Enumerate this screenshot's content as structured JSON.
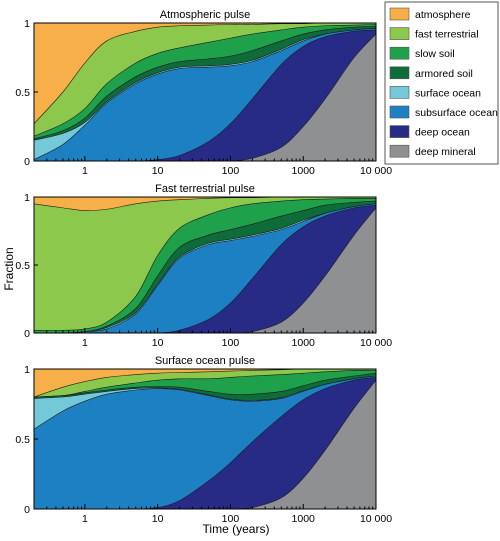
{
  "colors": {
    "atmosphere": "#f7b049",
    "fast_terrestrial": "#8cc84b",
    "slow_soil": "#1fa04a",
    "armored_soil": "#0e6b3a",
    "surface_ocean": "#74c9d8",
    "subsurface_ocean": "#1d80c3",
    "deep_ocean": "#272b86",
    "deep_mineral": "#8f9092"
  },
  "shared_axes": {
    "ylabel": "Fraction",
    "xlabel": "Time (years)",
    "xscale": "log",
    "xlim": [
      0.2,
      10000
    ],
    "ylim": [
      0,
      1
    ],
    "x_ticks": [
      1,
      10,
      100,
      1000,
      10000
    ],
    "x_tick_labels": [
      "1",
      "10",
      "100",
      "1000",
      "10 000"
    ],
    "y_ticks": [
      0,
      0.5,
      1
    ],
    "y_tick_labels": [
      "0",
      "0.5",
      "1"
    ]
  },
  "legend": {
    "placement": "top-right, outside",
    "entries": [
      "atmosphere",
      "fast terrestrial",
      "slow soil",
      "armored soil",
      "surface ocean",
      "subsurface ocean",
      "deep ocean",
      "deep mineral"
    ]
  },
  "chart_data": [
    {
      "type": "area",
      "title": "Atmospheric pulse",
      "stacking": "bottom-up cumulative boundaries",
      "x": [
        0.2,
        0.5,
        1,
        2,
        5,
        10,
        20,
        50,
        100,
        200,
        500,
        1000,
        2000,
        5000,
        10000
      ],
      "series": [
        {
          "name": "deep mineral",
          "values": [
            0,
            0,
            0,
            0,
            0,
            0,
            0,
            0,
            0,
            0.02,
            0.1,
            0.25,
            0.45,
            0.75,
            0.92
          ]
        },
        {
          "name": "deep ocean",
          "values": [
            0,
            0,
            0,
            0,
            0,
            0.01,
            0.04,
            0.14,
            0.27,
            0.45,
            0.7,
            0.83,
            0.9,
            0.94,
            0.95
          ]
        },
        {
          "name": "subsurface ocean",
          "values": [
            0.01,
            0.12,
            0.26,
            0.42,
            0.56,
            0.63,
            0.67,
            0.68,
            0.69,
            0.72,
            0.8,
            0.87,
            0.92,
            0.95,
            0.96
          ]
        },
        {
          "name": "surface ocean",
          "values": [
            0.15,
            0.2,
            0.28,
            0.43,
            0.57,
            0.64,
            0.68,
            0.69,
            0.7,
            0.73,
            0.81,
            0.88,
            0.92,
            0.95,
            0.96
          ]
        },
        {
          "name": "armored soil",
          "values": [
            0.16,
            0.22,
            0.31,
            0.47,
            0.61,
            0.68,
            0.72,
            0.74,
            0.76,
            0.8,
            0.87,
            0.92,
            0.95,
            0.97,
            0.975
          ]
        },
        {
          "name": "slow soil",
          "values": [
            0.18,
            0.27,
            0.38,
            0.56,
            0.71,
            0.78,
            0.82,
            0.86,
            0.89,
            0.92,
            0.95,
            0.97,
            0.98,
            0.985,
            0.99
          ]
        },
        {
          "name": "fast terrestrial",
          "values": [
            0.27,
            0.5,
            0.71,
            0.87,
            0.94,
            0.97,
            0.98,
            0.985,
            0.99,
            0.99,
            0.995,
            0.995,
            1,
            1,
            1
          ]
        },
        {
          "name": "atmosphere",
          "values": [
            1,
            1,
            1,
            1,
            1,
            1,
            1,
            1,
            1,
            1,
            1,
            1,
            1,
            1,
            1
          ]
        }
      ]
    },
    {
      "type": "area",
      "title": "Fast terrestrial pulse",
      "stacking": "bottom-up cumulative boundaries",
      "x": [
        0.2,
        0.5,
        1,
        2,
        5,
        10,
        20,
        50,
        100,
        200,
        500,
        1000,
        2000,
        5000,
        10000
      ],
      "series": [
        {
          "name": "deep mineral",
          "values": [
            0,
            0,
            0,
            0,
            0,
            0,
            0,
            0,
            0,
            0.01,
            0.08,
            0.22,
            0.42,
            0.72,
            0.92
          ]
        },
        {
          "name": "deep ocean",
          "values": [
            0,
            0,
            0,
            0,
            0,
            0,
            0.02,
            0.1,
            0.22,
            0.4,
            0.65,
            0.78,
            0.86,
            0.92,
            0.94
          ]
        },
        {
          "name": "subsurface ocean",
          "values": [
            0,
            0,
            0.01,
            0.03,
            0.14,
            0.35,
            0.55,
            0.65,
            0.68,
            0.71,
            0.76,
            0.82,
            0.88,
            0.93,
            0.95
          ]
        },
        {
          "name": "surface ocean",
          "values": [
            0,
            0,
            0.01,
            0.04,
            0.15,
            0.36,
            0.56,
            0.66,
            0.69,
            0.72,
            0.77,
            0.83,
            0.88,
            0.93,
            0.95
          ]
        },
        {
          "name": "armored soil",
          "values": [
            0,
            0,
            0.01,
            0.05,
            0.18,
            0.42,
            0.63,
            0.72,
            0.76,
            0.8,
            0.86,
            0.9,
            0.94,
            0.96,
            0.97
          ]
        },
        {
          "name": "slow soil",
          "values": [
            0.02,
            0.02,
            0.03,
            0.08,
            0.27,
            0.57,
            0.77,
            0.87,
            0.92,
            0.95,
            0.97,
            0.98,
            0.985,
            0.99,
            0.99
          ]
        },
        {
          "name": "fast terrestrial",
          "values": [
            0.95,
            0.92,
            0.9,
            0.91,
            0.95,
            0.97,
            0.98,
            0.99,
            0.995,
            0.995,
            1,
            1,
            1,
            1,
            1
          ]
        },
        {
          "name": "atmosphere",
          "values": [
            1,
            1,
            1,
            1,
            1,
            1,
            1,
            1,
            1,
            1,
            1,
            1,
            1,
            1,
            1
          ]
        }
      ]
    },
    {
      "type": "area",
      "title": "Surface ocean pulse",
      "stacking": "bottom-up cumulative boundaries",
      "x": [
        0.2,
        0.5,
        1,
        2,
        5,
        10,
        20,
        50,
        100,
        200,
        500,
        1000,
        2000,
        5000,
        10000
      ],
      "series": [
        {
          "name": "deep mineral",
          "values": [
            0,
            0,
            0,
            0,
            0,
            0,
            0,
            0,
            0,
            0.01,
            0.08,
            0.22,
            0.42,
            0.72,
            0.92
          ]
        },
        {
          "name": "deep ocean",
          "values": [
            0,
            0,
            0,
            0,
            0,
            0.01,
            0.06,
            0.2,
            0.33,
            0.48,
            0.66,
            0.78,
            0.86,
            0.92,
            0.94
          ]
        },
        {
          "name": "subsurface ocean",
          "values": [
            0.57,
            0.7,
            0.77,
            0.82,
            0.85,
            0.86,
            0.85,
            0.81,
            0.78,
            0.77,
            0.79,
            0.84,
            0.89,
            0.93,
            0.95
          ]
        },
        {
          "name": "surface ocean",
          "values": [
            0.79,
            0.8,
            0.82,
            0.84,
            0.86,
            0.865,
            0.855,
            0.815,
            0.785,
            0.775,
            0.795,
            0.845,
            0.89,
            0.93,
            0.95
          ]
        },
        {
          "name": "armored soil",
          "values": [
            0.8,
            0.81,
            0.83,
            0.85,
            0.87,
            0.875,
            0.87,
            0.84,
            0.82,
            0.82,
            0.84,
            0.88,
            0.92,
            0.95,
            0.97
          ]
        },
        {
          "name": "slow soil",
          "values": [
            0.8,
            0.81,
            0.84,
            0.87,
            0.9,
            0.92,
            0.93,
            0.93,
            0.94,
            0.95,
            0.96,
            0.97,
            0.98,
            0.99,
            0.99
          ]
        },
        {
          "name": "fast terrestrial",
          "values": [
            0.8,
            0.87,
            0.91,
            0.94,
            0.96,
            0.97,
            0.975,
            0.98,
            0.985,
            0.99,
            0.995,
            1,
            1,
            1,
            1
          ]
        },
        {
          "name": "atmosphere",
          "values": [
            1,
            1,
            1,
            1,
            1,
            1,
            1,
            1,
            1,
            1,
            1,
            1,
            1,
            1,
            1
          ]
        }
      ]
    }
  ]
}
